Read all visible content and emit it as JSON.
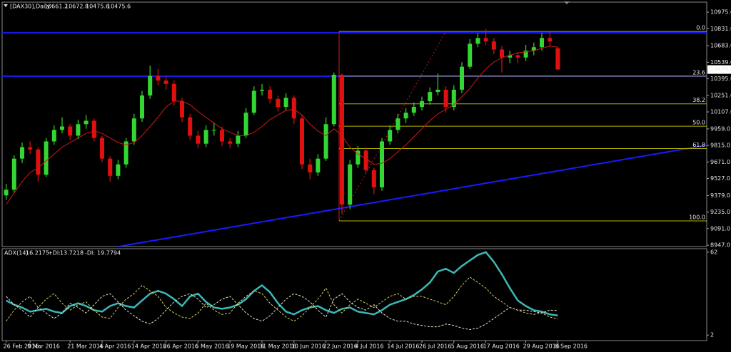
{
  "chart_data": [
    {
      "type": "candlestick",
      "title": "[DAX30],Daily",
      "categories": [
        "26 Feb 2016",
        null,
        null,
        "9 Mar 2016",
        null,
        null,
        null,
        null,
        "21 Mar 2016",
        null,
        null,
        null,
        "4 Apr 2016",
        null,
        null,
        null,
        "14 Apr 2016",
        null,
        null,
        null,
        "26 Apr 2016",
        null,
        null,
        null,
        "6 May 2016",
        null,
        null,
        null,
        "19 May 2016",
        null,
        null,
        null,
        "31 May 2016",
        null,
        null,
        null,
        "10 Jun 2016",
        null,
        null,
        null,
        "22 Jun 2016",
        null,
        null,
        null,
        "4 Jul 2016",
        null,
        null,
        null,
        "14 Jul 2016",
        null,
        null,
        null,
        "26 Jul 2016",
        null,
        null,
        null,
        "5 Aug 2016",
        null,
        null,
        null,
        "17 Aug 2016",
        null,
        null,
        null,
        null,
        "29 Aug 2016",
        null,
        null,
        null,
        "8 Sep 2016"
      ],
      "ohlc": [
        [
          9380,
          9480,
          9340,
          9430
        ],
        [
          9430,
          9730,
          9400,
          9700
        ],
        [
          9700,
          9840,
          9660,
          9800
        ],
        [
          9800,
          9850,
          9740,
          9780
        ],
        [
          9780,
          9800,
          9500,
          9560
        ],
        [
          9560,
          9880,
          9540,
          9850
        ],
        [
          9850,
          9990,
          9820,
          9950
        ],
        [
          9950,
          10060,
          9920,
          9980
        ],
        [
          9980,
          10000,
          9860,
          9900
        ],
        [
          9900,
          10040,
          9870,
          10000
        ],
        [
          10000,
          10080,
          9960,
          10030
        ],
        [
          10030,
          10050,
          9850,
          9880
        ],
        [
          9880,
          9900,
          9670,
          9700
        ],
        [
          9700,
          9720,
          9500,
          9550
        ],
        [
          9550,
          9690,
          9520,
          9650
        ],
        [
          9650,
          9880,
          9620,
          9850
        ],
        [
          9850,
          10090,
          9820,
          10050
        ],
        [
          10050,
          10290,
          10020,
          10250
        ],
        [
          10250,
          10510,
          10220,
          10420
        ],
        [
          10420,
          10480,
          10340,
          10380
        ],
        [
          10380,
          10420,
          10300,
          10350
        ],
        [
          10350,
          10380,
          10160,
          10200
        ],
        [
          10200,
          10230,
          10020,
          10060
        ],
        [
          10060,
          10090,
          9860,
          9900
        ],
        [
          9900,
          9940,
          9790,
          9830
        ],
        [
          9830,
          9990,
          9800,
          9950
        ],
        [
          9950,
          10010,
          9900,
          9950
        ],
        [
          9950,
          9980,
          9810,
          9850
        ],
        [
          9850,
          9880,
          9790,
          9830
        ],
        [
          9830,
          9940,
          9800,
          9900
        ],
        [
          9900,
          10140,
          9880,
          10100
        ],
        [
          10100,
          10330,
          10080,
          10290
        ],
        [
          10290,
          10350,
          10250,
          10300
        ],
        [
          10300,
          10330,
          10180,
          10220
        ],
        [
          10220,
          10250,
          10110,
          10150
        ],
        [
          10150,
          10270,
          10120,
          10230
        ],
        [
          10230,
          10250,
          10000,
          10050
        ],
        [
          10050,
          10080,
          9610,
          9650
        ],
        [
          9650,
          9700,
          9520,
          9580
        ],
        [
          9580,
          9740,
          9550,
          9700
        ],
        [
          9700,
          10060,
          9680,
          10000
        ],
        [
          10000,
          10450,
          9980,
          10430
        ],
        [
          10430,
          10440,
          9220,
          9300
        ],
        [
          9300,
          9690,
          9260,
          9650
        ],
        [
          9650,
          9810,
          9620,
          9770
        ],
        [
          9770,
          9800,
          9570,
          9600
        ],
        [
          9600,
          9620,
          9390,
          9450
        ],
        [
          9450,
          9880,
          9420,
          9850
        ],
        [
          9850,
          9990,
          9820,
          9950
        ],
        [
          9950,
          10090,
          9920,
          10050
        ],
        [
          10050,
          10140,
          10010,
          10100
        ],
        [
          10100,
          10190,
          10070,
          10150
        ],
        [
          10150,
          10240,
          10120,
          10200
        ],
        [
          10200,
          10320,
          10170,
          10280
        ],
        [
          10280,
          10440,
          10250,
          10300
        ],
        [
          10300,
          10330,
          10100,
          10150
        ],
        [
          10150,
          10340,
          10120,
          10300
        ],
        [
          10300,
          10540,
          10270,
          10500
        ],
        [
          10500,
          10740,
          10480,
          10700
        ],
        [
          10700,
          10790,
          10670,
          10750
        ],
        [
          10750,
          10830,
          10690,
          10720
        ],
        [
          10720,
          10750,
          10610,
          10650
        ],
        [
          10650,
          10680,
          10450,
          10580
        ],
        [
          10580,
          10640,
          10530,
          10600
        ],
        [
          10600,
          10630,
          10530,
          10580
        ],
        [
          10580,
          10690,
          10550,
          10640
        ],
        [
          10640,
          10710,
          10600,
          10670
        ],
        [
          10670,
          10790,
          10640,
          10750
        ],
        [
          10750,
          10800,
          10680,
          10720
        ],
        [
          10661.2,
          10672.8,
          10475.6,
          10475.6
        ]
      ],
      "up_color": "#33d633",
      "down_color": "#e01010",
      "ylim": [
        8935,
        11056
      ],
      "yticks": [
        {
          "value": 10975,
          "label": "10975.0"
        },
        {
          "value": 10831,
          "label": "10831.0"
        },
        {
          "value": 10683,
          "label": "10683.0"
        },
        {
          "value": 10539,
          "label": "10539.0"
        },
        {
          "value": 10395,
          "label": "10395.0"
        },
        {
          "value": 10251,
          "label": "10251.0"
        },
        {
          "value": 10107,
          "label": "10107.0"
        },
        {
          "value": 9959,
          "label": "9959.0"
        },
        {
          "value": 9815,
          "label": "9815.0"
        },
        {
          "value": 9671,
          "label": "9671.0"
        },
        {
          "value": 9527,
          "label": "9527.0"
        },
        {
          "value": 9379,
          "label": "9379.0"
        },
        {
          "value": 9235,
          "label": "9235.0"
        },
        {
          "value": 9091,
          "label": "9091.0"
        },
        {
          "value": 8947,
          "label": "8947.0"
        }
      ],
      "ma": {
        "color": "#d01818",
        "values": [
          9300,
          9400,
          9500,
          9580,
          9620,
          9680,
          9740,
          9800,
          9840,
          9880,
          9920,
          9940,
          9920,
          9880,
          9840,
          9820,
          9840,
          9900,
          9980,
          10060,
          10150,
          10200,
          10200,
          10170,
          10110,
          10060,
          10010,
          9960,
          9930,
          9900,
          9900,
          9930,
          9980,
          10040,
          10080,
          10120,
          10130,
          10080,
          10000,
          9940,
          9900,
          9960,
          9900,
          9800,
          9740,
          9700,
          9650,
          9660,
          9700,
          9760,
          9820,
          9890,
          9960,
          10030,
          10090,
          10130,
          10170,
          10240,
          10310,
          10400,
          10480,
          10540,
          10580,
          10600,
          10620,
          10630,
          10640,
          10660,
          10680,
          10670
        ]
      },
      "hlines": {
        "color": "#1a1aff",
        "values": [
          10795,
          10418
        ]
      },
      "trendline": {
        "color": "#1a1aff",
        "x": [
          14,
          88.5
        ],
        "y": [
          8934,
          9828
        ]
      },
      "fib": {
        "color": "#b8b400",
        "line_color": "#c02020",
        "x": [
          42,
          55
        ],
        "high": 10807,
        "low": 9158,
        "levels": [
          {
            "value": 0,
            "label": "0.0"
          },
          23.6,
          38.2,
          {
            "value": 50,
            "label": "50.0"
          },
          61.8,
          {
            "value": 100,
            "label": "100.0"
          }
        ]
      }
    },
    {
      "type": "line",
      "title": "ADX(14)",
      "ylim": [
        -2,
        64
      ],
      "yticks": [
        62,
        2
      ],
      "series": [
        {
          "color": "#3cb8b8",
          "values": [
            27,
            24,
            22,
            19,
            20,
            21,
            19,
            18,
            23,
            25,
            23,
            20,
            19,
            23,
            25,
            23,
            22,
            27,
            32,
            34,
            32,
            28,
            23,
            30,
            32,
            26,
            22,
            21,
            22,
            24,
            28,
            34,
            38,
            33,
            25,
            19,
            17,
            20,
            22,
            23,
            20,
            18,
            21,
            22,
            19,
            18,
            17,
            20,
            24,
            26,
            28,
            31,
            35,
            40,
            48,
            50,
            47,
            52,
            56,
            60,
            62,
            55,
            46,
            36,
            27,
            23,
            20,
            19,
            17,
            16.2175
          ]
        },
        {
          "name": "+DI:",
          "color": "#d8d060",
          "dash": true,
          "values": [
            12,
            20,
            26,
            30,
            22,
            28,
            32,
            25,
            20,
            24,
            26,
            20,
            15,
            14,
            22,
            28,
            32,
            38,
            34,
            30,
            22,
            18,
            15,
            14,
            18,
            25,
            20,
            17,
            18,
            25,
            30,
            34,
            32,
            25,
            20,
            15,
            12,
            16,
            22,
            28,
            36,
            24,
            18,
            24,
            28,
            25,
            22,
            26,
            30,
            32,
            28,
            30,
            30,
            28,
            26,
            24,
            30,
            38,
            44,
            40,
            36,
            30,
            26,
            22,
            20,
            18,
            17,
            18,
            15,
            13.7218
          ]
        },
        {
          "name": "-DI:",
          "color": "#e8e8c8",
          "dash": true,
          "values": [
            30,
            24,
            20,
            15,
            22,
            18,
            14,
            18,
            25,
            22,
            18,
            24,
            30,
            32,
            26,
            20,
            16,
            12,
            10,
            14,
            20,
            26,
            30,
            32,
            28,
            22,
            24,
            28,
            30,
            24,
            18,
            14,
            12,
            16,
            22,
            28,
            32,
            30,
            26,
            20,
            15,
            28,
            32,
            26,
            22,
            20,
            24,
            18,
            14,
            12,
            12,
            10,
            9,
            8,
            8,
            10,
            9,
            7,
            6,
            7,
            10,
            14,
            18,
            22,
            20,
            20,
            19,
            18,
            20,
            19.7794
          ]
        }
      ]
    }
  ]
}
